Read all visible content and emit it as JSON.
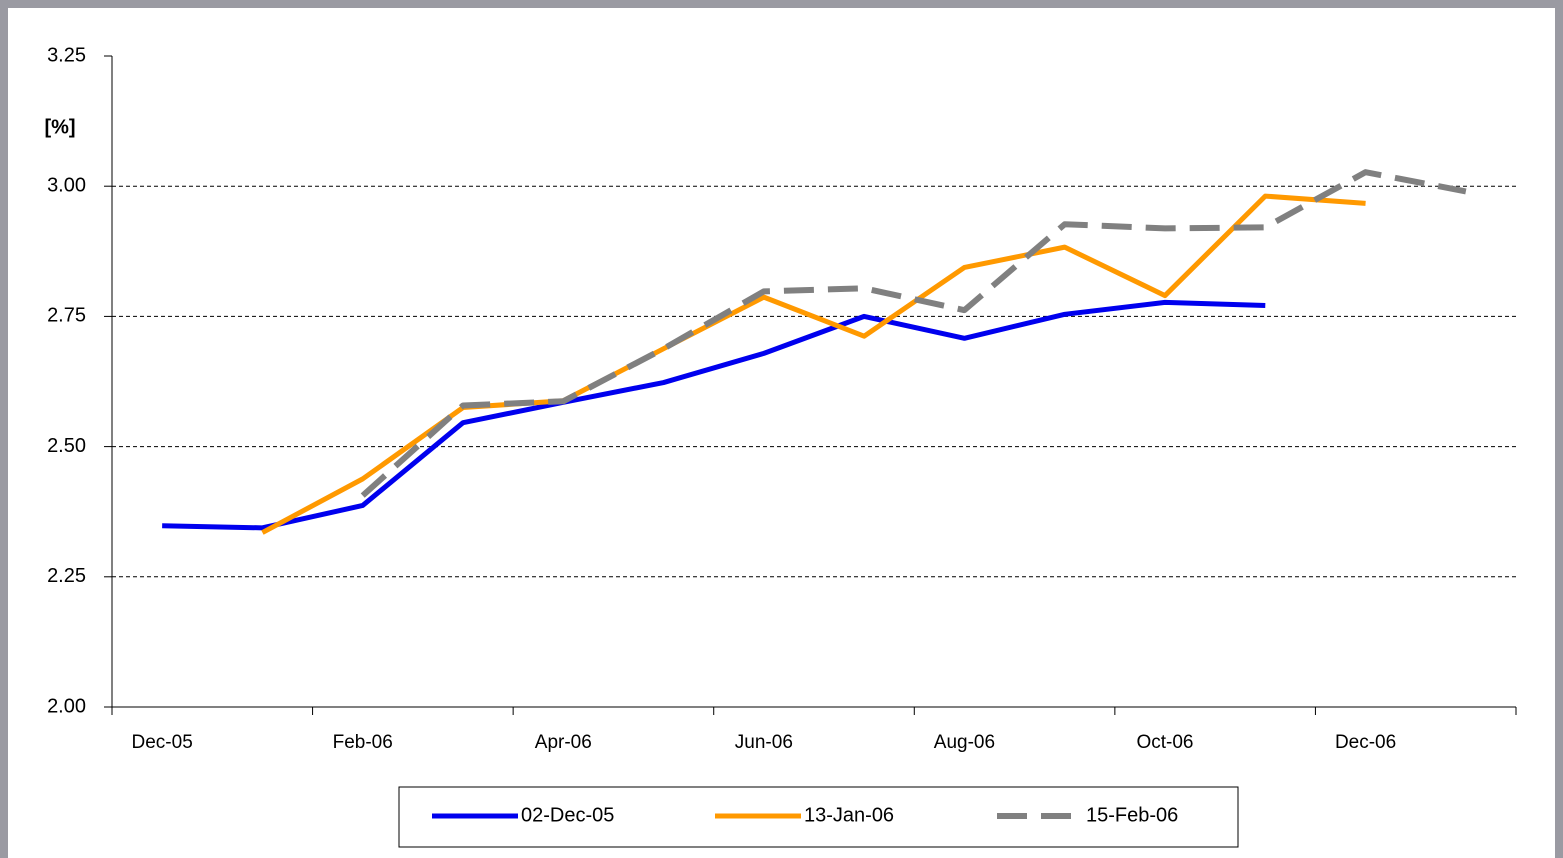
{
  "chart_data": {
    "type": "line",
    "y_label": "[%]",
    "categories": [
      "Dec-05",
      null,
      "Feb-06",
      null,
      "Apr-06",
      null,
      "Jun-06",
      null,
      "Aug-06",
      null,
      "Oct-06",
      null,
      "Dec-06",
      null
    ],
    "series": [
      {
        "name": "02-Dec-05",
        "color": "#0000ee",
        "dash": false,
        "values": [
          2.348,
          2.344,
          2.387,
          2.546,
          2.585,
          2.623,
          2.679,
          2.75,
          2.708,
          2.754,
          2.777,
          2.771,
          null,
          null
        ]
      },
      {
        "name": "13-Jan-06",
        "color": "#ff9900",
        "dash": false,
        "values": [
          null,
          2.335,
          2.438,
          2.575,
          2.588,
          2.688,
          2.787,
          2.712,
          2.844,
          2.883,
          2.79,
          2.981,
          2.967,
          null
        ]
      },
      {
        "name": "15-Feb-06",
        "color": "#808080",
        "dash": true,
        "values": [
          null,
          null,
          2.406,
          2.579,
          2.587,
          2.688,
          2.798,
          2.804,
          2.762,
          2.927,
          2.919,
          2.921,
          3.027,
          2.99
        ]
      }
    ],
    "ylim": [
      2,
      3.25
    ],
    "yticks": [
      {
        "value": 2,
        "label": "2.00"
      },
      2.25,
      {
        "value": 2.5,
        "label": "2.50"
      },
      2.75,
      {
        "value": 3,
        "label": "3.00"
      },
      3.25
    ],
    "grid": true,
    "legend": "bottom"
  }
}
